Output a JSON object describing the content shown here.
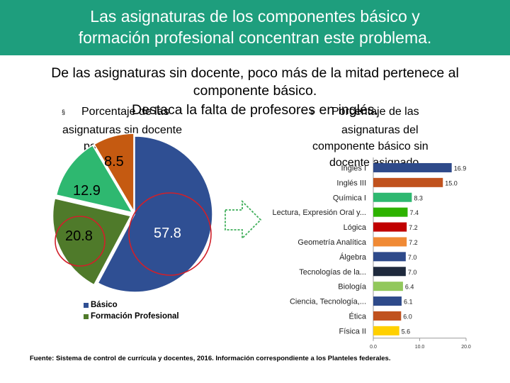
{
  "header": {
    "line1": "Las asignaturas de los componentes básico y",
    "line2": "formación profesional concentran este problema."
  },
  "subtitle": {
    "line1": "De las asignaturas sin docente, poco más de la mitad pertenece al",
    "line2": "componente básico.",
    "line3": "Destaca la falta de profesores en inglés."
  },
  "left_title": {
    "bullet": "§",
    "line1": "Porcentaje de las",
    "line2": "asignaturas sin docente",
    "line3": "por componente"
  },
  "right_title": {
    "bullet": "§",
    "line1": "Porcentaje de las",
    "line2": "asignaturas del",
    "line3": "componente básico sin",
    "line4": "docente asignado"
  },
  "footer": "Fuente: Sistema de control de currícula y docentes, 2016. Información correspondiente a los Planteles federales.",
  "colors": {
    "header": "#1e9e7d",
    "pie_basico": "#2f4f93",
    "pie_formacion": "#4f7a2a",
    "pie_green": "#2eb870",
    "pie_orange": "#c55a11",
    "circle": "#d0202a",
    "arrow": "#3fae5a"
  },
  "chart_data": [
    {
      "type": "pie",
      "title": "Porcentaje de las asignaturas sin docente por componente",
      "slices": [
        {
          "label": "Básico",
          "value": 57.8,
          "display": "57.8",
          "color": "#2f4f93"
        },
        {
          "label": "Formación Profesional",
          "value": 20.8,
          "display": "20.8",
          "color": "#4f7a2a"
        },
        {
          "label": "",
          "value": 12.9,
          "display": "12.9",
          "color": "#2eb870"
        },
        {
          "label": "",
          "value": 8.5,
          "display": "8.5",
          "color": "#c55a11"
        }
      ],
      "legend": [
        {
          "label": "Básico",
          "color": "#2f4f93"
        },
        {
          "label": "Formación Profesional",
          "color": "#4f7a2a"
        }
      ]
    },
    {
      "type": "bar",
      "orientation": "horizontal",
      "title": "Porcentaje de las asignaturas del componente básico sin docente asignado",
      "categories": [
        "Inglés I",
        "Inglés III",
        "Química I",
        "Lectura, Expresión Oral y...",
        "Lógica",
        "Geometría Analítica",
        "Álgebra",
        "Tecnologías de la...",
        "Biología",
        "Ciencia, Tecnología,...",
        "Ética",
        "Física II"
      ],
      "values": [
        16.9,
        15.0,
        8.3,
        7.4,
        7.2,
        7.2,
        7.0,
        7.0,
        6.4,
        6.1,
        6.0,
        5.6
      ],
      "value_labels": [
        "16.9",
        "15.0",
        "8.3",
        "7.4",
        "7.2",
        "7.2",
        "7.0",
        "7.0",
        "6.4",
        "6.1",
        "6.0",
        "5.6"
      ],
      "colors": [
        "#2e4a8a",
        "#c0521e",
        "#2eb870",
        "#2db200",
        "#c00000",
        "#f08a35",
        "#2e4a8a",
        "#1f2a3d",
        "#92c85c",
        "#2e4a8a",
        "#c0521e",
        "#ffd000"
      ],
      "xlim": [
        0,
        20
      ],
      "ticks": [
        0,
        10,
        20
      ],
      "tick_labels": [
        "0.0",
        "10.0",
        "20.0"
      ]
    }
  ]
}
